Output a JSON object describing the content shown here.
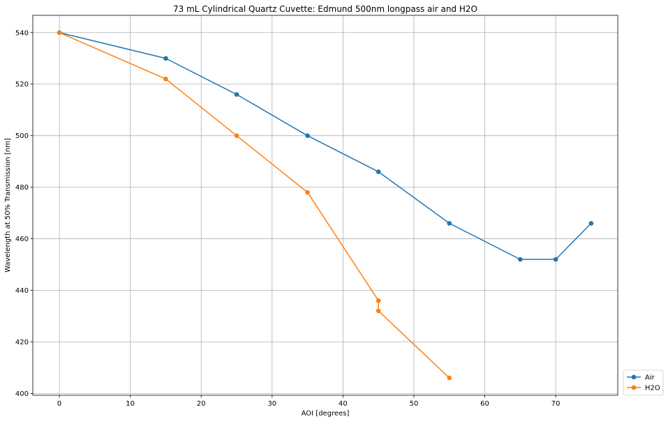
{
  "chart_data": {
    "type": "line",
    "title": "73 mL Cylindrical Quartz Cuvette: Edmund 500nm longpass air and H2O",
    "xlabel": "AOI [degrees]",
    "ylabel": "Wavelength at 50% Transmission [nm]",
    "xlim": [
      -3.75,
      78.75
    ],
    "ylim": [
      399.3,
      546.7
    ],
    "xticks": [
      0,
      10,
      20,
      30,
      40,
      50,
      60,
      70
    ],
    "yticks": [
      400,
      420,
      440,
      460,
      480,
      500,
      520,
      540
    ],
    "grid": true,
    "legend_position": "lower-right-outside",
    "series": [
      {
        "name": "Air",
        "color": "#1f77b4",
        "x": [
          0,
          15,
          25,
          35,
          45,
          55,
          65,
          70,
          75
        ],
        "y": [
          540,
          530,
          516,
          500,
          486,
          466,
          452,
          452,
          466
        ]
      },
      {
        "name": "H2O",
        "color": "#ff7f0e",
        "x": [
          0,
          15,
          25,
          35,
          45,
          45,
          55
        ],
        "y": [
          540,
          522,
          500,
          478,
          436,
          432,
          406
        ]
      }
    ]
  }
}
